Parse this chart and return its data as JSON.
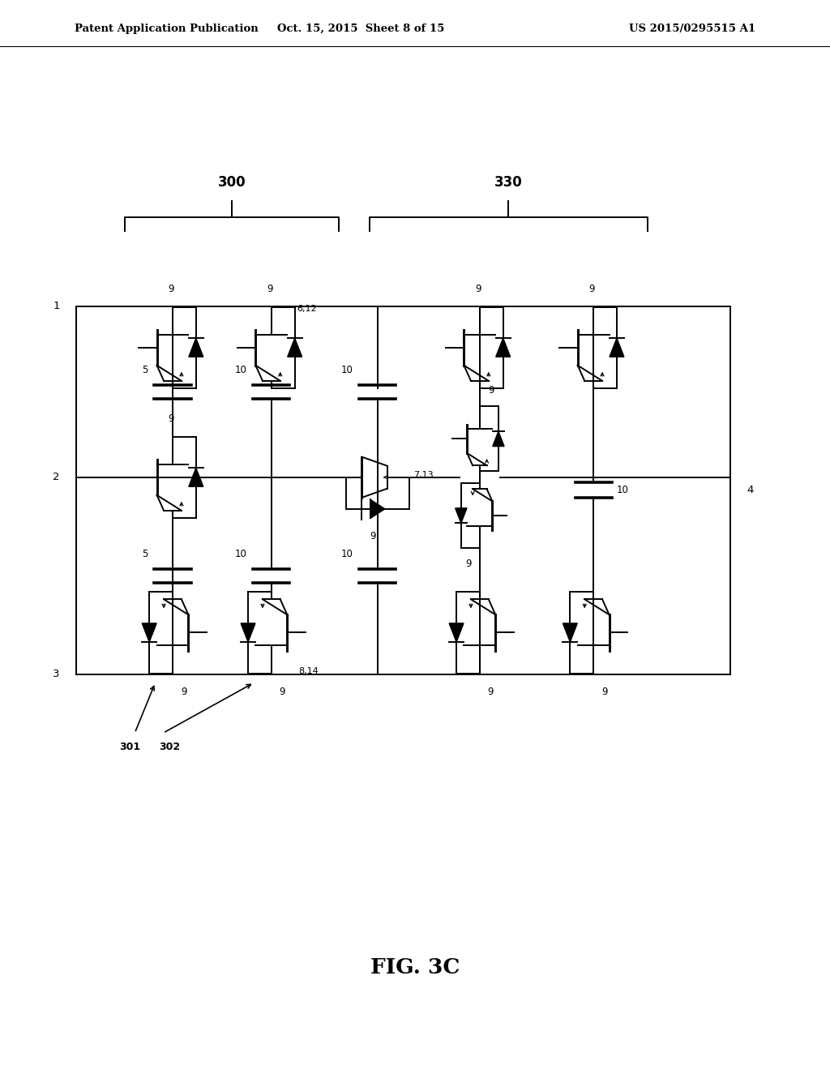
{
  "header_left": "Patent Application Publication",
  "header_center": "Oct. 15, 2015  Sheet 8 of 15",
  "header_right": "US 2015/0295515 A1",
  "fig_title": "FIG. 3C",
  "label_300": "300",
  "label_330": "330",
  "label_301": "301",
  "label_302": "302",
  "bg_color": "#ffffff",
  "line_color": "#000000"
}
